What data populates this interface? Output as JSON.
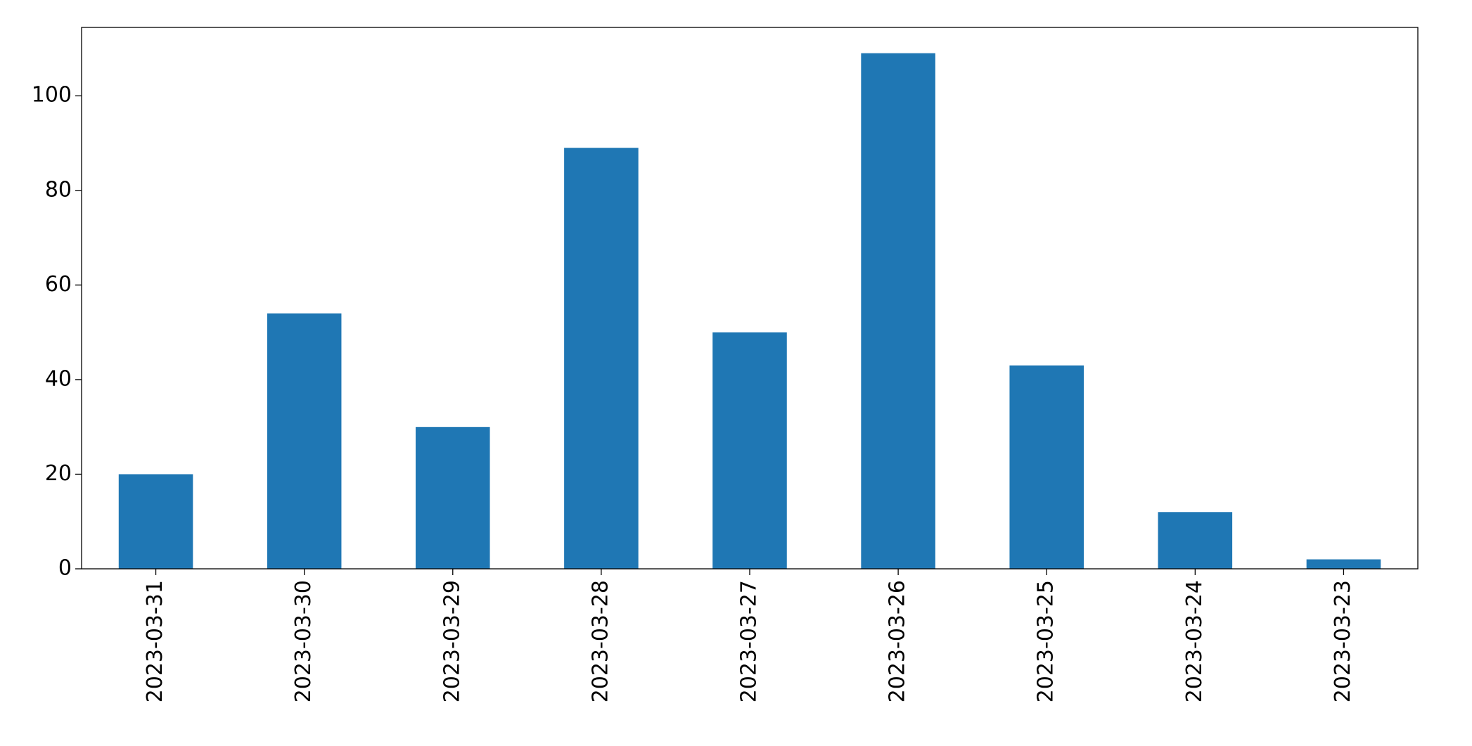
{
  "chart_data": {
    "type": "bar",
    "categories": [
      "2023-03-31",
      "2023-03-30",
      "2023-03-29",
      "2023-03-28",
      "2023-03-27",
      "2023-03-26",
      "2023-03-25",
      "2023-03-24",
      "2023-03-23"
    ],
    "values": [
      20,
      54,
      30,
      89,
      50,
      109,
      43,
      12,
      2
    ],
    "color": "#1f77b4",
    "ylim": [
      0,
      114.45
    ],
    "yticks": [
      0,
      20,
      40,
      60,
      80,
      100
    ],
    "grid": false
  }
}
